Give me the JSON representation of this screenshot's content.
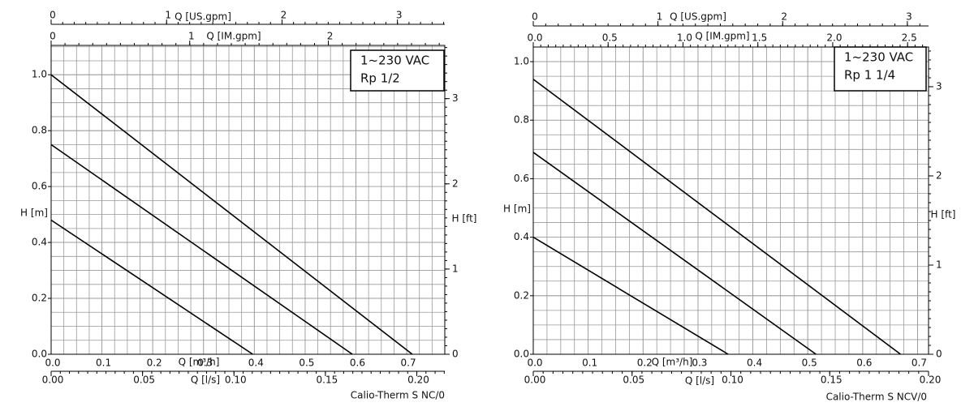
{
  "chart_data": [
    {
      "type": "line",
      "legend_box": [
        "1~230 VAC",
        "Rp 1/2"
      ],
      "footer": "Calio-Therm S NC/0",
      "xlabel": "Q [m³/h]",
      "ylabel": "H [m]",
      "xlim": [
        0,
        0.775
      ],
      "xticks": [
        {
          "value": 0,
          "label": "0.0"
        },
        0.1,
        0.2,
        0.3,
        0.4,
        0.5,
        0.6,
        0.7
      ],
      "ylim": [
        0,
        1.105
      ],
      "yticks": [
        {
          "value": 0,
          "label": "0.0"
        },
        0.2,
        0.4,
        0.6,
        0.8,
        {
          "value": 1,
          "label": "1.0"
        }
      ],
      "grid": true,
      "series": [
        {
          "color": "#000000",
          "x": [
            0,
            0.711
          ],
          "values": [
            1.0,
            0
          ]
        },
        {
          "color": "#000000",
          "x": [
            0,
            0.593
          ],
          "values": [
            0.75,
            0
          ]
        },
        {
          "color": "#000000",
          "x": [
            0,
            0.397
          ],
          "values": [
            0.48,
            0
          ]
        }
      ],
      "secondary_axes": [
        {
          "label": "Q [US.gpm]",
          "position": "top",
          "lim": [
            0,
            3.41
          ],
          "ticks": [
            0,
            1,
            2,
            3
          ]
        },
        {
          "label": "Q [IM.gpm]",
          "position": "top-inner",
          "lim": [
            0,
            2.84
          ],
          "ticks": [
            0,
            1,
            2
          ]
        },
        {
          "label": "Q [l/s]",
          "position": "bottom",
          "lim": [
            0,
            0.2153
          ],
          "ticks": [
            {
              "value": 0,
              "label": "0.00"
            },
            0.05,
            {
              "value": 0.1,
              "label": "0.10"
            },
            0.15,
            {
              "value": 0.2,
              "label": "0.20"
            }
          ]
        },
        {
          "label": "H [ft]",
          "position": "right",
          "lim": [
            0,
            3.625
          ],
          "ticks": [
            0,
            1,
            2,
            3
          ]
        }
      ]
    },
    {
      "type": "line",
      "legend_box": [
        "1~230 VAC",
        "Rp 1 1/4"
      ],
      "footer": "Calio-Therm S NCV/0",
      "xlabel": "Q [m³/h]",
      "ylabel": "H [m]",
      "xlim": [
        0,
        0.72
      ],
      "xticks": [
        {
          "value": 0,
          "label": "0.0"
        },
        0.1,
        0.2,
        0.3,
        0.4,
        0.5,
        0.6,
        0.7
      ],
      "ylim": [
        0,
        1.05
      ],
      "yticks": [
        {
          "value": 0,
          "label": "0.0"
        },
        0.2,
        0.4,
        0.6,
        0.8,
        {
          "value": 1,
          "label": "1.0"
        }
      ],
      "grid": true,
      "series": [
        {
          "color": "#000000",
          "x": [
            0,
            0.669
          ],
          "values": [
            0.94,
            0
          ]
        },
        {
          "color": "#000000",
          "x": [
            0,
            0.515
          ],
          "values": [
            0.69,
            0
          ]
        },
        {
          "color": "#000000",
          "x": [
            0,
            0.355
          ],
          "values": [
            0.4,
            0
          ]
        }
      ],
      "secondary_axes": [
        {
          "label": "Q [US.gpm]",
          "position": "top",
          "lim": [
            0,
            3.17
          ],
          "ticks": [
            0,
            1,
            2,
            3
          ]
        },
        {
          "label": "Q [IM.gpm]",
          "position": "top-inner",
          "lim": [
            0,
            2.64
          ],
          "ticks": [
            {
              "value": 0,
              "label": "0.0"
            },
            0.5,
            {
              "value": 1,
              "label": "1.0"
            },
            1.5,
            {
              "value": 2,
              "label": "2.0"
            },
            2.5
          ]
        },
        {
          "label": "Q [l/s]",
          "position": "bottom",
          "lim": [
            0,
            0.2
          ],
          "ticks": [
            {
              "value": 0,
              "label": "0.00"
            },
            0.05,
            {
              "value": 0.1,
              "label": "0.10"
            },
            0.15,
            {
              "value": 0.2,
              "label": "0.20"
            }
          ]
        },
        {
          "label": "H [ft]",
          "position": "right",
          "lim": [
            0,
            3.445
          ],
          "ticks": [
            0,
            1,
            2,
            3
          ]
        }
      ]
    }
  ]
}
